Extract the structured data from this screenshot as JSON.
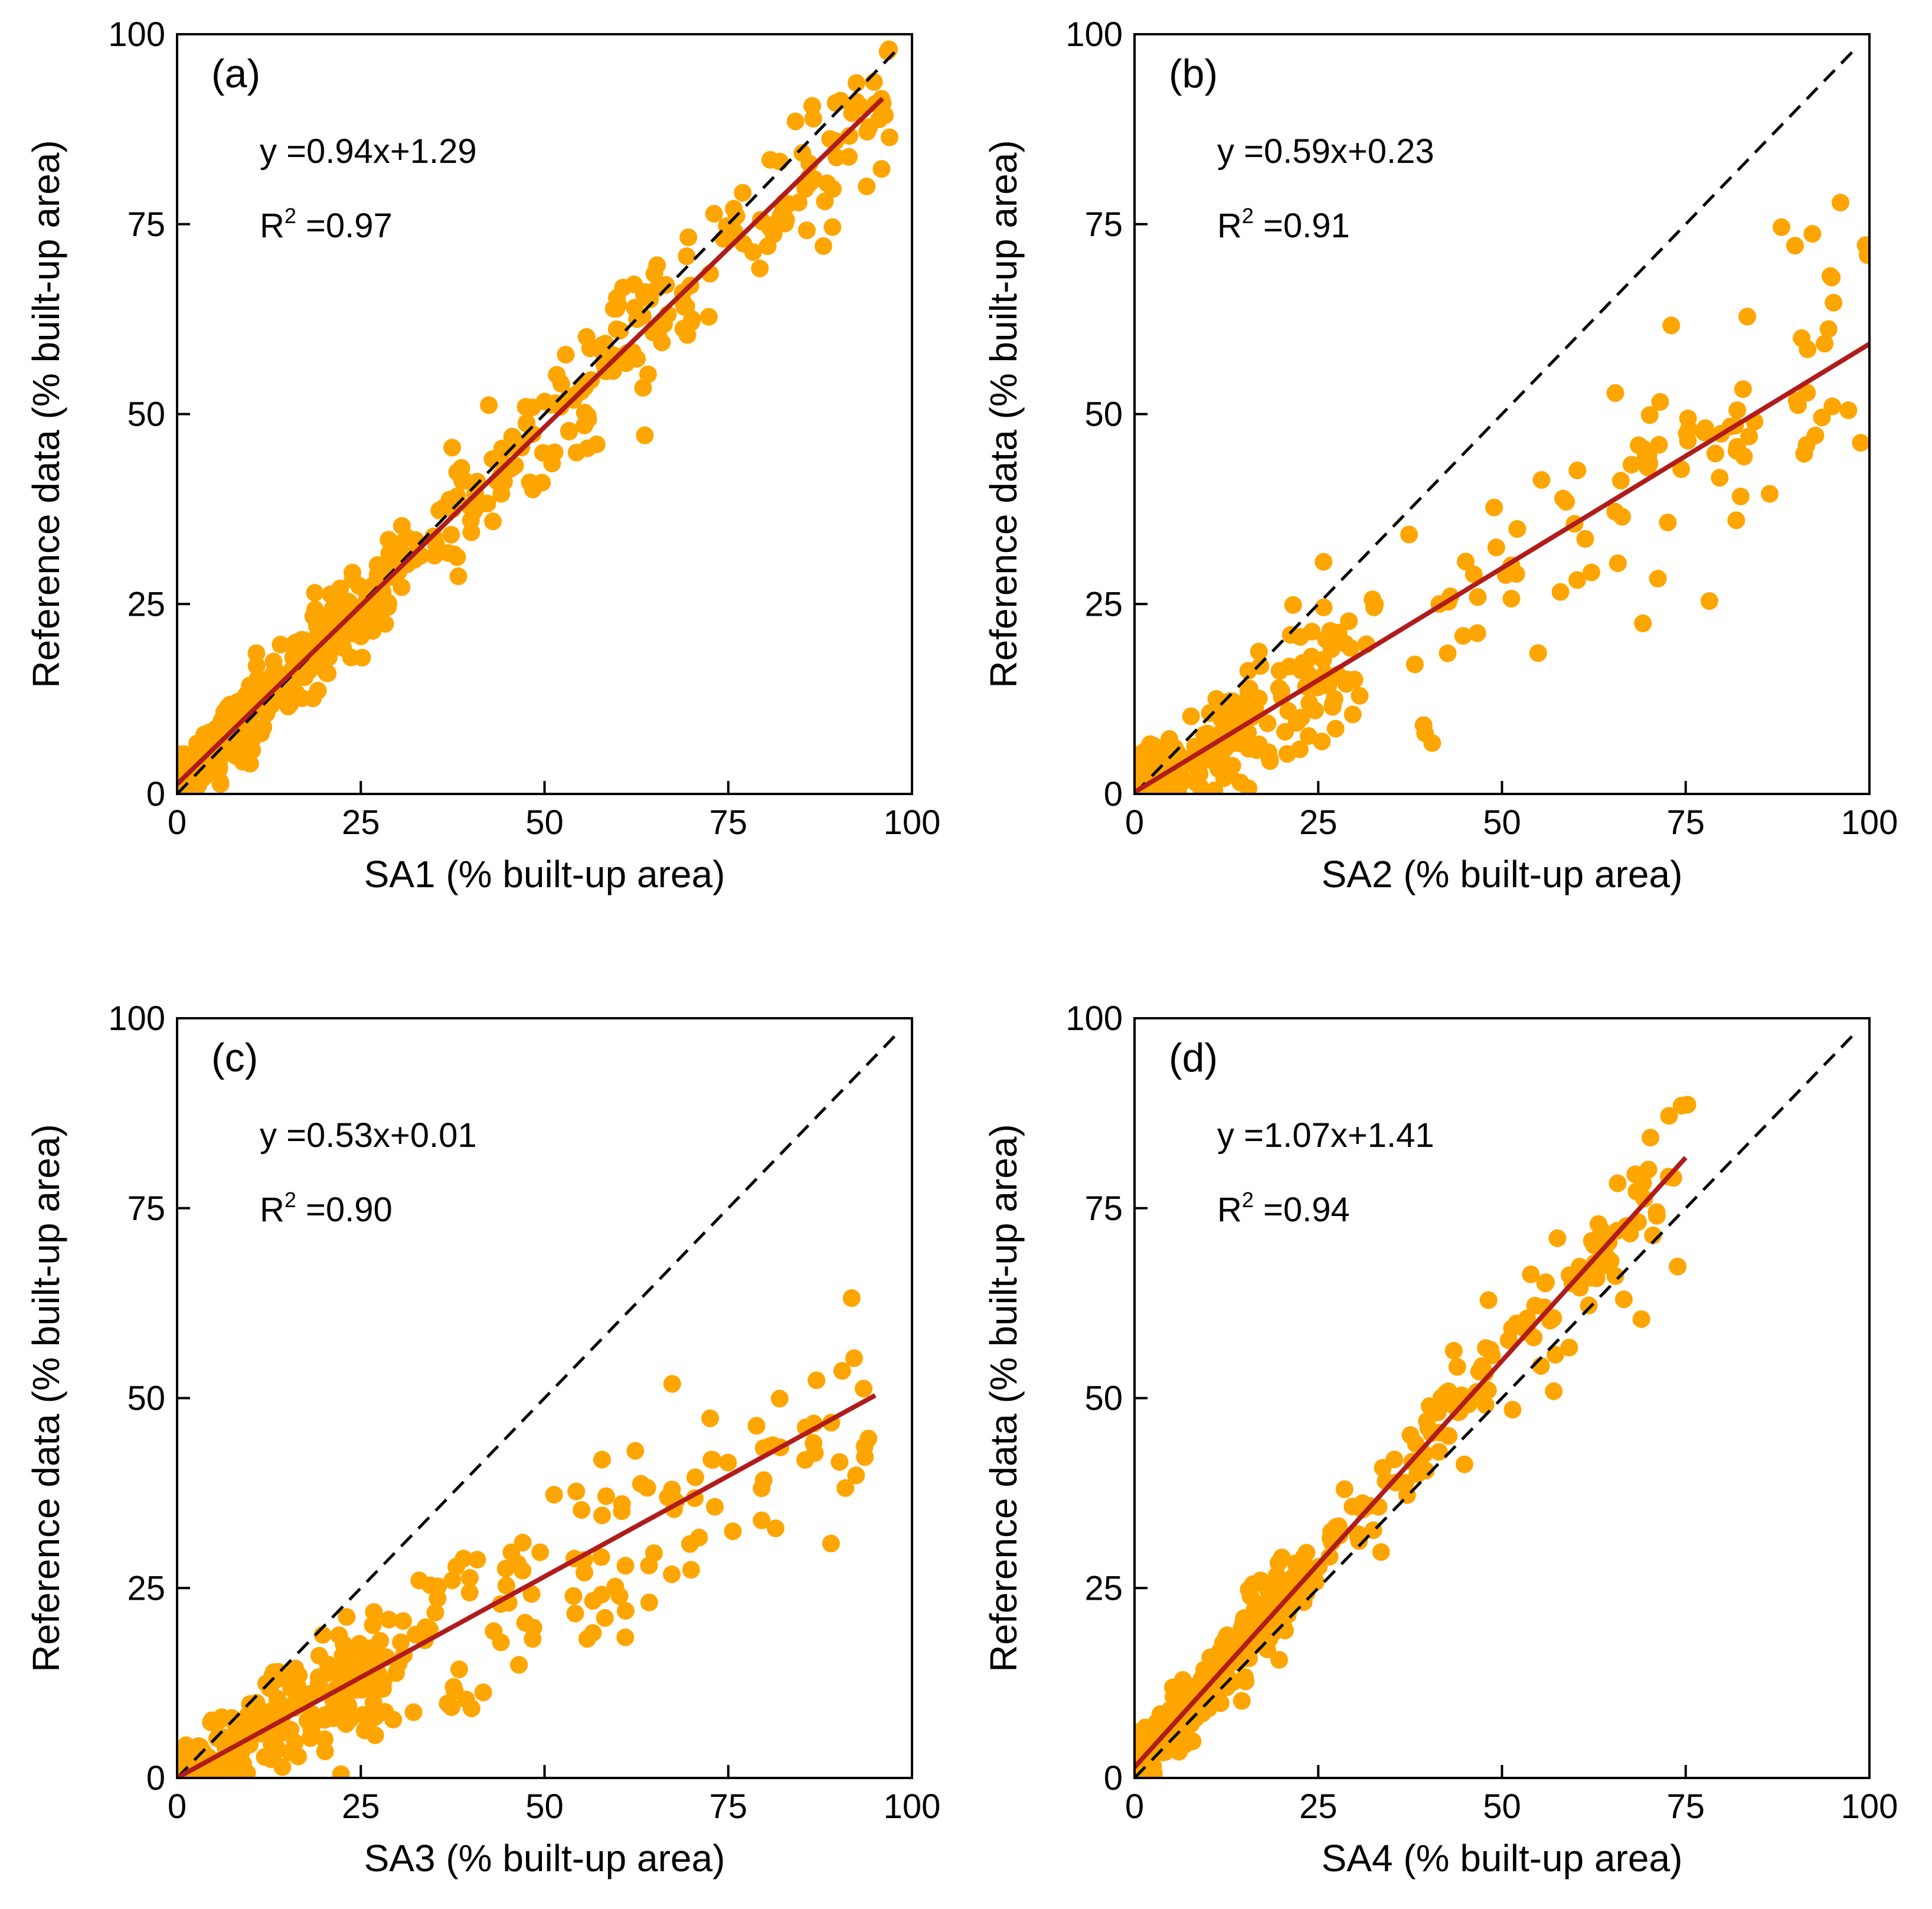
{
  "figure": {
    "colors": {
      "points": "#FFA500",
      "fit_line": "#B01C1C",
      "identity_line": "#000000",
      "frame": "#000000"
    }
  },
  "chart_data": [
    {
      "type": "scatter",
      "panel_label": "(a)",
      "xlabel": "SA1 (% built-up area)",
      "ylabel": "Reference data (% built-up area)",
      "xlim": [
        0,
        100
      ],
      "ylim": [
        0,
        100
      ],
      "xticks": [
        "0",
        "25",
        "50",
        "75",
        "100"
      ],
      "yticks": [
        "0",
        "25",
        "50",
        "75",
        "100"
      ],
      "equation": "y =0.94x+1.29",
      "r2_prefix": "R",
      "r2_sup": "2",
      "r2_value": " =0.97",
      "fit": {
        "slope": 0.94,
        "intercept": 1.29,
        "x_range": [
          0,
          96
        ]
      },
      "identity_line": true,
      "point_cloud": {
        "n": 520,
        "x_max": 97,
        "noise_sd": 4.0,
        "seed": 11,
        "dense_low_fraction": 0.45
      }
    },
    {
      "type": "scatter",
      "panel_label": "(b)",
      "xlabel": "SA2 (% built-up area)",
      "ylabel": "Reference data (% built-up area)",
      "xlim": [
        0,
        100
      ],
      "ylim": [
        0,
        100
      ],
      "xticks": [
        "0",
        "25",
        "50",
        "75",
        "100"
      ],
      "yticks": [
        "0",
        "25",
        "50",
        "75",
        "100"
      ],
      "equation": "y =0.59x+0.23",
      "r2_prefix": "R",
      "r2_sup": "2",
      "r2_value": " =0.91",
      "fit": {
        "slope": 0.59,
        "intercept": 0.23,
        "x_range": [
          0,
          100
        ]
      },
      "identity_line": true,
      "point_cloud": {
        "n": 300,
        "x_max": 100,
        "noise_sd": 6.5,
        "seed": 23,
        "dense_low_fraction": 0.5
      }
    },
    {
      "type": "scatter",
      "panel_label": "(c)",
      "xlabel": "SA3 (% built-up area)",
      "ylabel": "Reference data (% built-up area)",
      "xlim": [
        0,
        100
      ],
      "ylim": [
        0,
        100
      ],
      "xticks": [
        "0",
        "25",
        "50",
        "75",
        "100"
      ],
      "yticks": [
        "0",
        "25",
        "50",
        "75",
        "100"
      ],
      "equation": "y =0.53x+0.01",
      "r2_prefix": "R",
      "r2_sup": "2",
      "r2_value": " =0.90",
      "fit": {
        "slope": 0.53,
        "intercept": 0.01,
        "x_range": [
          0,
          95
        ]
      },
      "identity_line": true,
      "point_cloud": {
        "n": 380,
        "x_max": 95,
        "noise_sd": 5.5,
        "seed": 37,
        "dense_low_fraction": 0.5
      }
    },
    {
      "type": "scatter",
      "panel_label": "(d)",
      "xlabel": "SA4 (% built-up area)",
      "ylabel": "Reference data (% built-up area)",
      "xlim": [
        0,
        100
      ],
      "ylim": [
        0,
        100
      ],
      "xticks": [
        "0",
        "25",
        "50",
        "75",
        "100"
      ],
      "yticks": [
        "0",
        "25",
        "50",
        "75",
        "100"
      ],
      "equation": "y =1.07x+1.41",
      "r2_prefix": "R",
      "r2_sup": "2",
      "r2_value": " =0.94",
      "fit": {
        "slope": 1.07,
        "intercept": 1.41,
        "x_range": [
          0,
          75
        ]
      },
      "identity_line": true,
      "point_cloud": {
        "n": 420,
        "x_max": 76,
        "noise_sd": 3.5,
        "seed": 53,
        "dense_low_fraction": 0.55
      }
    }
  ]
}
